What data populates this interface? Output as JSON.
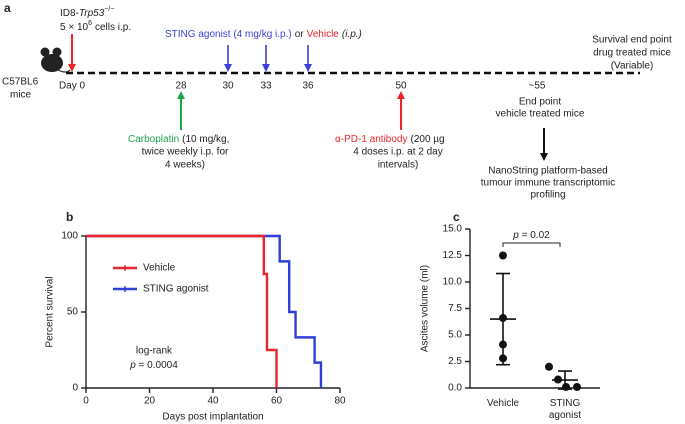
{
  "timeline": {
    "panel_label": "a",
    "cells": {
      "prefix": "ID8-",
      "gene": "Trp53",
      "genotype": "−/−",
      "dose_base": "5 × 10",
      "dose_exp": "6",
      "dose_suffix": "cells i.p."
    },
    "mouse": [
      "C57BL6",
      "mice"
    ],
    "day0": "Day 0",
    "treatment": {
      "agent": "STING agonist (4 mg/kg i.p.)",
      "or": "or",
      "control": "Vehicle",
      "route": "(i.p.)"
    },
    "days": [
      "28",
      "30",
      "33",
      "36",
      "50",
      "~55"
    ],
    "carboplatin": {
      "agent": "Carboplatin",
      "lines": [
        "(10 mg/kg,",
        "twice weekly i.p. for",
        "4 weeks)"
      ]
    },
    "antibody": {
      "agent": "α-PD-1 antibody",
      "lines": [
        "(200 µg",
        "4 doses i.p. at 2 day",
        "intervals)"
      ]
    },
    "vehicle_endpoint": [
      "End point",
      "vehicle treated mice"
    ],
    "drug_endpoint": [
      "Survival end point",
      "drug treated mice",
      "(Variable)"
    ],
    "profiling": [
      "NanoString platform-based",
      "tumour immune transcriptomic",
      "profiling"
    ]
  },
  "chart_data": [
    {
      "type": "line",
      "panel_label": "b",
      "step": true,
      "xlabel": "Days post implantation",
      "ylabel": "Percent survival",
      "xlim": [
        0,
        80
      ],
      "xticks": [
        0,
        20,
        40,
        60,
        80
      ],
      "ylim": [
        0,
        100
      ],
      "yticks": [
        0,
        50,
        100
      ],
      "series": [
        {
          "name": "Vehicle",
          "color": "#e8262b",
          "x": [
            0,
            56,
            57,
            60
          ],
          "values": [
            100,
            75,
            25,
            0
          ]
        },
        {
          "name": "STING agonist",
          "color": "#2f3fd8",
          "x": [
            0,
            61,
            64,
            66,
            72,
            74
          ],
          "values": [
            100,
            83.3,
            50,
            33.3,
            16.7,
            0
          ]
        }
      ],
      "annotation": "log-rank",
      "p_value": "p = 0.0004"
    },
    {
      "type": "scatter",
      "panel_label": "c",
      "color": "#111111",
      "ylabel": "Ascites volume (ml)",
      "categories": [
        "Vehicle",
        "STING agonist"
      ],
      "points": [
        [
          12.5,
          6.6,
          4.1,
          2.8
        ],
        [
          2.0,
          0.8,
          0.1,
          0.1
        ]
      ],
      "means": [
        6.5,
        0.75
      ],
      "sd": [
        4.3,
        0.85
      ],
      "ylim": [
        0,
        15
      ],
      "yticks": [
        {
          "value": 0,
          "label": "0.0"
        },
        {
          "value": 2.5,
          "label": "2.5"
        },
        {
          "value": 5,
          "label": "5.0"
        },
        {
          "value": 7.5,
          "label": "7.5"
        },
        {
          "value": 10,
          "label": "10.0"
        },
        {
          "value": 12.5,
          "label": "12.5"
        },
        {
          "value": 15,
          "label": "15.0"
        }
      ],
      "p_value": "p = 0.02"
    }
  ]
}
